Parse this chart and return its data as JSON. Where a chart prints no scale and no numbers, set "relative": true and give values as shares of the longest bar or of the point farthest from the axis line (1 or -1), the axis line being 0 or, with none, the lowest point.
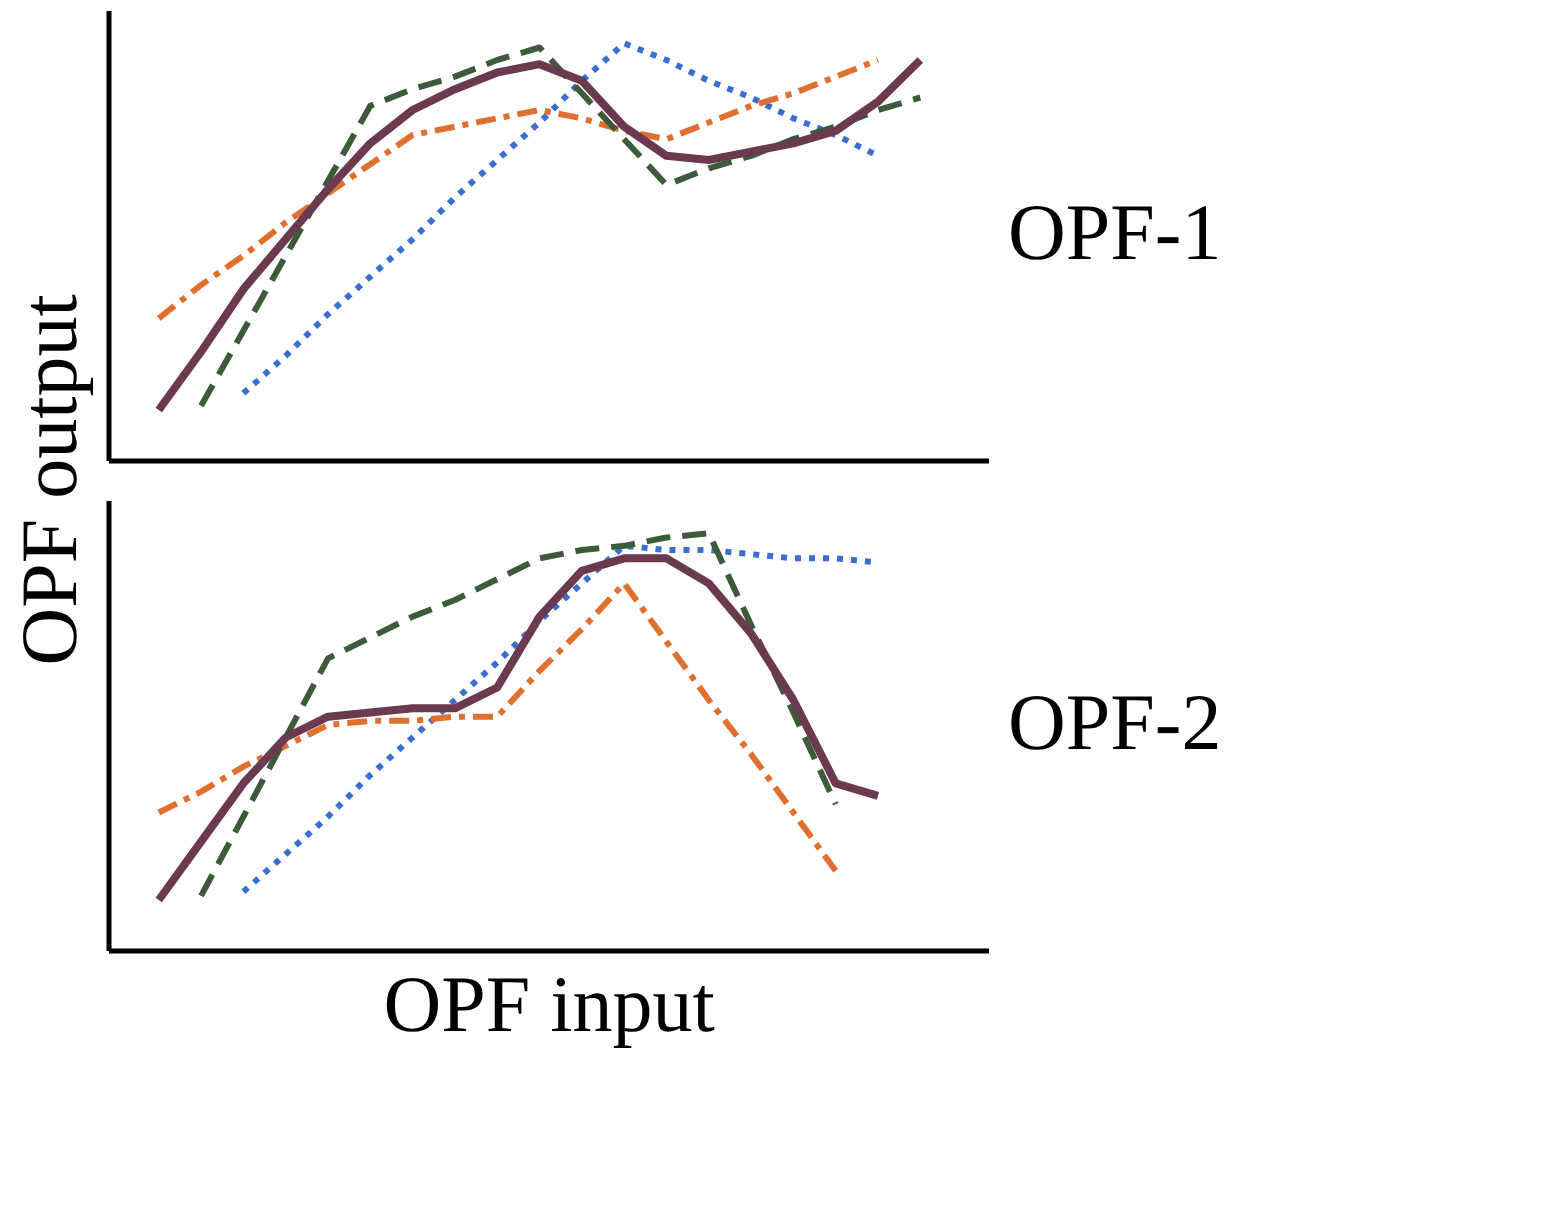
{
  "chart_data": [
    {
      "type": "line",
      "title": "OPF-1",
      "ylabel": "OPF output",
      "relative": true,
      "tick_labels": false,
      "categories": [
        null,
        null,
        null,
        null,
        null,
        null,
        null,
        null,
        null,
        null,
        null,
        null,
        null,
        null,
        null,
        null,
        null,
        null,
        null,
        null,
        null
      ],
      "series": [
        {
          "color": "#3a6fd0",
          "line_style": "dotted",
          "values": [
            null,
            null,
            null,
            0.16,
            0.25,
            0.35,
            0.44,
            0.53,
            0.63,
            0.72,
            0.81,
            0.91,
            1.0,
            0.96,
            0.91,
            0.87,
            0.82,
            0.78,
            0.73,
            null,
            null
          ]
        },
        {
          "color": "#e07030",
          "line_style": "dashdot",
          "values": [
            null,
            0.34,
            0.42,
            0.49,
            0.57,
            0.64,
            0.71,
            0.78,
            0.8,
            0.82,
            0.84,
            0.82,
            0.79,
            0.77,
            0.81,
            0.85,
            0.88,
            0.92,
            0.96,
            null,
            null
          ]
        },
        {
          "color": "#3d5a3a",
          "line_style": "dashed",
          "values": [
            null,
            null,
            0.13,
            0.31,
            0.49,
            0.67,
            0.85,
            0.89,
            0.92,
            0.96,
            0.99,
            0.88,
            0.77,
            0.66,
            0.7,
            0.73,
            0.77,
            0.8,
            0.84,
            0.87,
            null
          ]
        },
        {
          "color": "#6b3a50",
          "line_style": "solid",
          "values": [
            null,
            0.12,
            0.26,
            0.41,
            0.53,
            0.65,
            0.76,
            0.84,
            0.89,
            0.93,
            0.95,
            0.91,
            0.8,
            0.73,
            0.72,
            0.74,
            0.76,
            0.79,
            0.86,
            0.96,
            null
          ]
        }
      ]
    },
    {
      "type": "line",
      "title": "OPF-2",
      "xlabel": "OPF input",
      "relative": true,
      "tick_labels": false,
      "categories": [
        null,
        null,
        null,
        null,
        null,
        null,
        null,
        null,
        null,
        null,
        null,
        null,
        null,
        null,
        null,
        null,
        null,
        null,
        null,
        null,
        null
      ],
      "series": [
        {
          "color": "#3a6fd0",
          "line_style": "dotted",
          "values": [
            null,
            null,
            null,
            0.14,
            0.23,
            0.32,
            0.42,
            0.51,
            0.6,
            0.69,
            0.79,
            0.88,
            0.97,
            0.96,
            0.96,
            0.95,
            0.94,
            0.94,
            0.93,
            null,
            null
          ]
        },
        {
          "color": "#e07030",
          "line_style": "dashdot",
          "values": [
            null,
            0.33,
            0.38,
            0.44,
            0.49,
            0.54,
            0.55,
            0.55,
            0.56,
            0.56,
            0.67,
            0.77,
            0.88,
            0.74,
            0.6,
            0.47,
            0.33,
            0.19,
            null,
            null,
            null
          ]
        },
        {
          "color": "#3d5a3a",
          "line_style": "dashed",
          "values": [
            null,
            null,
            0.13,
            0.32,
            0.51,
            0.7,
            0.75,
            0.8,
            0.84,
            0.89,
            0.94,
            0.96,
            0.97,
            0.99,
            1.0,
            0.78,
            0.57,
            0.35,
            null,
            null,
            null
          ]
        },
        {
          "color": "#6b3a50",
          "line_style": "solid",
          "values": [
            null,
            0.12,
            0.26,
            0.4,
            0.51,
            0.56,
            0.57,
            0.58,
            0.58,
            0.63,
            0.8,
            0.91,
            0.94,
            0.94,
            0.88,
            0.76,
            0.6,
            0.4,
            0.37,
            null,
            null
          ]
        }
      ]
    }
  ]
}
